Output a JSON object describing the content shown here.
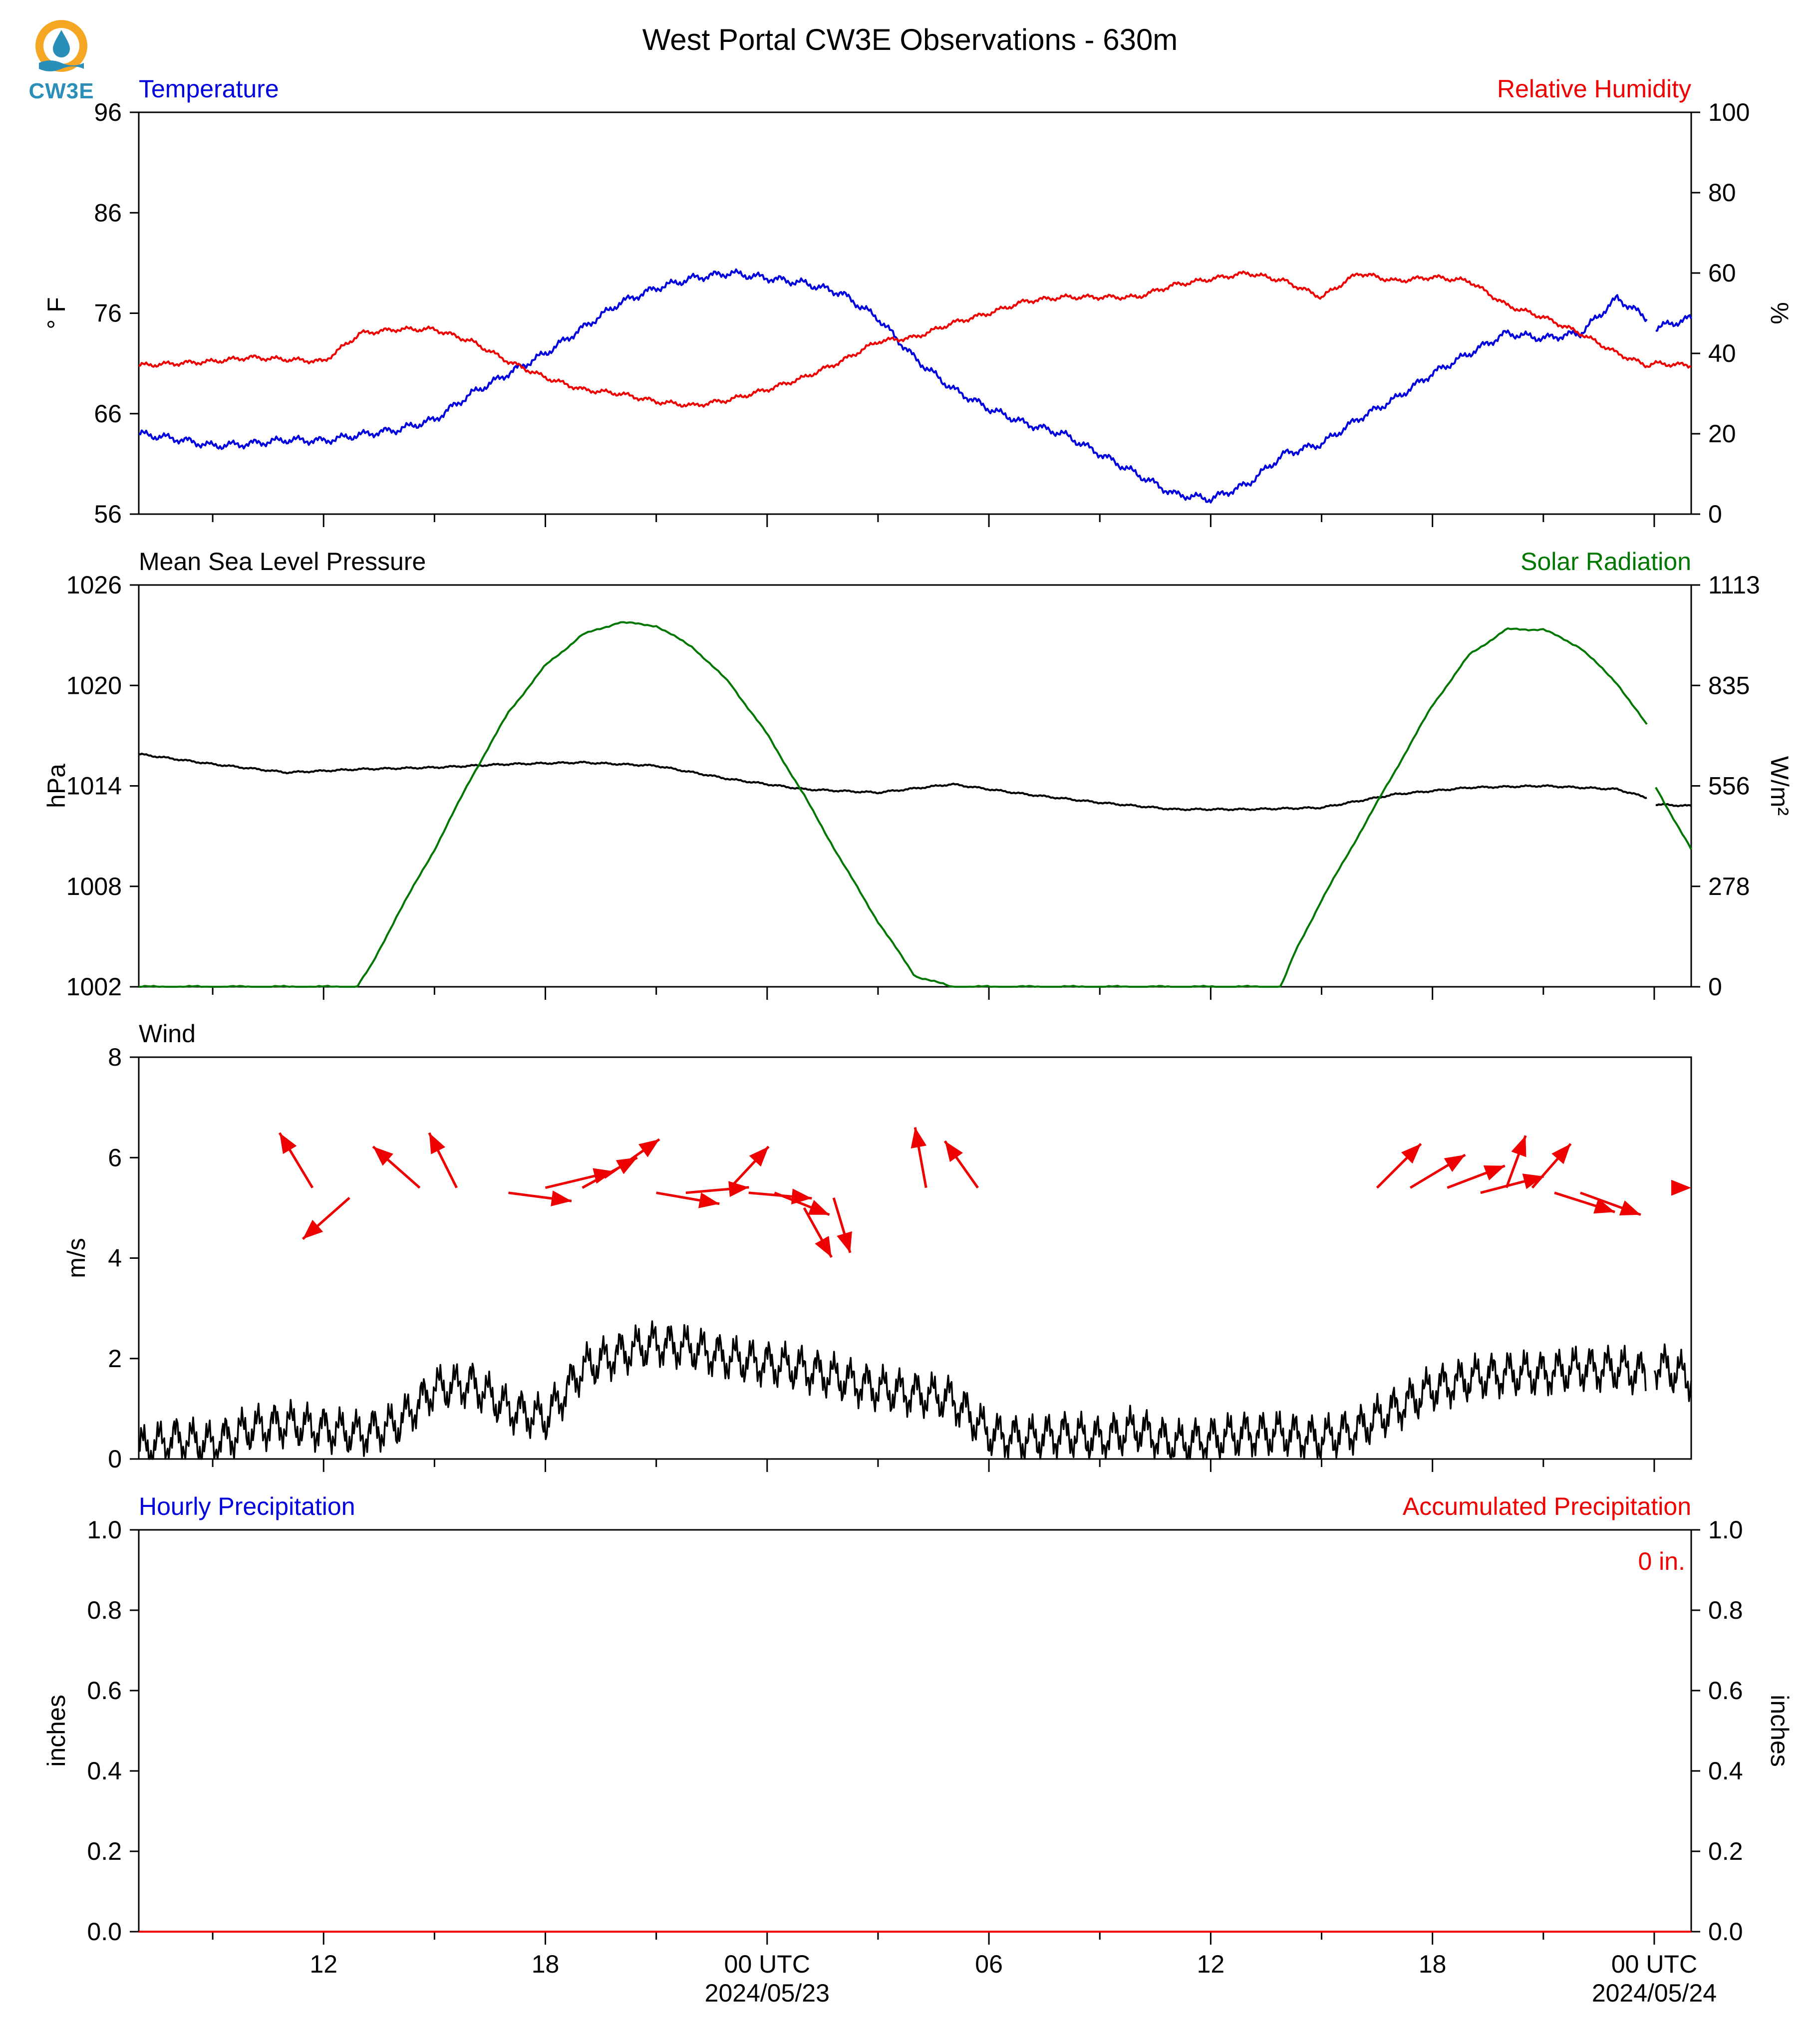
{
  "figure": {
    "title": "West Portal CW3E Observations - 630m",
    "logo_text": "CW3E"
  },
  "colors": {
    "temperature": "#0000dd",
    "humidity": "#ee0000",
    "pressure": "#000000",
    "solar": "#007700",
    "wind_speed": "#000000",
    "wind_arrow": "#ee0000",
    "hourly_precip": "#0000dd",
    "accum_precip": "#ee0000",
    "logo_orange": "#f5a623",
    "logo_teal": "#2a8fb8"
  },
  "icons": {
    "logo": "cw3e-logo-icon"
  },
  "chart_data": [
    {
      "type": "line",
      "panel": "temperature-humidity",
      "title_left": "Temperature",
      "title_right": "Relative Humidity",
      "ylabel": "° F",
      "ylabel_right": "%",
      "ylim": [
        56,
        96
      ],
      "yticks": [
        "56",
        "66",
        "76",
        "86",
        "96"
      ],
      "ylim_right": [
        0,
        100
      ],
      "yticks_right": [
        "0",
        "20",
        "40",
        "60",
        "80",
        "100"
      ],
      "x_unit": "hours from 2024-05-22 07 UTC",
      "xlim": [
        0,
        42
      ],
      "series": [
        {
          "name": "Temperature",
          "axis": "left",
          "x": [
            0,
            1,
            2,
            3,
            4,
            5,
            6,
            7,
            8,
            9,
            10,
            11,
            12,
            13,
            14,
            15,
            16,
            17,
            18,
            19,
            20,
            21,
            22,
            23,
            24,
            25,
            26,
            27,
            28,
            29,
            30,
            31,
            32,
            33,
            34,
            35,
            36,
            37,
            38,
            39,
            40,
            40.8,
            41.0,
            42
          ],
          "y": [
            64,
            63.5,
            62.8,
            63,
            63.4,
            63.3,
            63.9,
            64.4,
            65.4,
            68,
            70,
            72,
            74.5,
            77,
            78.5,
            79.5,
            80,
            79.5,
            79,
            78,
            75.5,
            71.5,
            68.5,
            66.5,
            65,
            64,
            62,
            60,
            58,
            57.5,
            59,
            62,
            63,
            65.5,
            67.5,
            70,
            72,
            74,
            73.5,
            74,
            77.5,
            75.5,
            74.5,
            75.5
          ],
          "gap_after_x": 40.8
        },
        {
          "name": "Relative Humidity",
          "axis": "right",
          "x": [
            0,
            1,
            2,
            3,
            4,
            5,
            6,
            7,
            8,
            9,
            10,
            11,
            12,
            13,
            14,
            15,
            16,
            17,
            18,
            19,
            20,
            21,
            22,
            23,
            24,
            25,
            26,
            27,
            28,
            29,
            30,
            31,
            32,
            33,
            34,
            35,
            36,
            37,
            38,
            39,
            40,
            40.8,
            41.0,
            42
          ],
          "y": [
            37,
            37.5,
            38,
            39,
            38.5,
            38,
            45,
            46,
            46,
            43,
            38,
            34,
            31,
            30,
            28,
            27,
            28.5,
            31,
            34,
            38,
            43,
            44,
            47.5,
            50,
            53,
            54,
            54,
            54,
            57,
            58.5,
            60,
            58,
            54,
            60,
            58,
            59,
            58,
            52,
            49,
            45,
            40,
            37,
            37.5,
            37
          ]
        }
      ]
    },
    {
      "type": "line",
      "panel": "pressure-solar",
      "title_left": "Mean Sea Level Pressure",
      "title_right": "Solar Radiation",
      "ylabel": "hPa",
      "ylabel_right": "W/m²",
      "ylim": [
        1002,
        1026
      ],
      "yticks": [
        "1002",
        "1008",
        "1014",
        "1020",
        "1026"
      ],
      "ylim_right": [
        0,
        1113
      ],
      "yticks_right": [
        "0",
        "278",
        "556",
        "835",
        "1113"
      ],
      "x_unit": "hours from 2024-05-22 07 UTC",
      "xlim": [
        0,
        42
      ],
      "series": [
        {
          "name": "Mean Sea Level Pressure",
          "axis": "left",
          "x": [
            0,
            2,
            4,
            6,
            8,
            10,
            12,
            14,
            16,
            18,
            20,
            22,
            24,
            26,
            28,
            30,
            32,
            34,
            36,
            38,
            40,
            40.8,
            41.0,
            42
          ],
          "y": [
            1015.9,
            1015.3,
            1014.8,
            1015.0,
            1015.1,
            1015.3,
            1015.4,
            1015.2,
            1014.4,
            1013.8,
            1013.6,
            1014.1,
            1013.5,
            1013.0,
            1012.6,
            1012.6,
            1012.7,
            1013.5,
            1013.9,
            1014.0,
            1013.8,
            1013.3,
            1012.9,
            1012.8
          ],
          "gap_after_x": 40.8
        },
        {
          "name": "Solar Radiation",
          "axis": "right",
          "x": [
            0,
            5.9,
            6.3,
            7,
            8,
            9,
            10,
            11,
            12,
            13,
            14,
            15,
            16,
            17,
            18,
            19,
            20,
            21,
            22,
            23,
            24,
            25,
            26,
            27,
            28,
            29,
            30,
            30.9,
            31.3,
            32,
            33,
            34,
            35,
            36,
            37,
            38,
            39,
            40,
            40.8,
            41.0,
            42
          ],
          "y": [
            0,
            0,
            60,
            200,
            380,
            580,
            760,
            890,
            975,
            1010,
            1000,
            940,
            840,
            700,
            530,
            350,
            180,
            30,
            0,
            0,
            0,
            0,
            0,
            0,
            0,
            0,
            0,
            0,
            100,
            240,
            420,
            600,
            780,
            920,
            990,
            990,
            940,
            840,
            725,
            560,
            380
          ],
          "gap_after_x": 40.8
        }
      ]
    },
    {
      "type": "line",
      "panel": "wind",
      "title_left": "Wind",
      "ylabel": "m/s",
      "ylim": [
        0,
        8
      ],
      "yticks": [
        "0",
        "2",
        "4",
        "6",
        "8"
      ],
      "x_unit": "hours from 2024-05-22 07 UTC",
      "xlim": [
        0,
        42
      ],
      "series": [
        {
          "name": "Wind speed",
          "axis": "left",
          "x": [
            0,
            1,
            2,
            3,
            4,
            5,
            6,
            7,
            8,
            9,
            10,
            11,
            12,
            13,
            14,
            15,
            16,
            17,
            18,
            19,
            20,
            21,
            22,
            23,
            24,
            25,
            26,
            27,
            28,
            29,
            30,
            31,
            32,
            33,
            34,
            35,
            36,
            37,
            38,
            39,
            40,
            40.8,
            41.0,
            42
          ],
          "y": [
            0.2,
            0.4,
            0.3,
            0.6,
            0.7,
            0.6,
            0.5,
            0.7,
            1.4,
            1.5,
            1.0,
            0.8,
            1.8,
            2.1,
            2.3,
            2.2,
            2.0,
            1.9,
            1.8,
            1.6,
            1.4,
            1.3,
            1.2,
            0.5,
            0.4,
            0.5,
            0.4,
            0.6,
            0.3,
            0.4,
            0.5,
            0.5,
            0.4,
            0.6,
            1.0,
            1.4,
            1.6,
            1.7,
            1.7,
            1.8,
            1.8,
            1.7,
            1.9,
            1.6
          ],
          "gap_after_x": 40.8
        }
      ],
      "wind_vectors": {
        "note": "arrow x = hour, base y = m/s, (u, v) = m/s components",
        "arrows": [
          {
            "x": 4.7,
            "y": 5.4,
            "u": -1.2,
            "v": 2.0
          },
          {
            "x": 5.7,
            "y": 5.2,
            "u": -1.7,
            "v": -1.5
          },
          {
            "x": 7.6,
            "y": 5.4,
            "u": -1.7,
            "v": 1.5
          },
          {
            "x": 8.6,
            "y": 5.4,
            "u": -1.0,
            "v": 2.0
          },
          {
            "x": 10.0,
            "y": 5.3,
            "u": 2.3,
            "v": -0.3
          },
          {
            "x": 11.0,
            "y": 5.4,
            "u": 2.5,
            "v": 0.6
          },
          {
            "x": 12.0,
            "y": 5.4,
            "u": 2.0,
            "v": 1.1
          },
          {
            "x": 12.6,
            "y": 5.6,
            "u": 2.0,
            "v": 1.4
          },
          {
            "x": 14.0,
            "y": 5.3,
            "u": 2.3,
            "v": -0.4
          },
          {
            "x": 14.8,
            "y": 5.3,
            "u": 2.3,
            "v": 0.2
          },
          {
            "x": 16.0,
            "y": 5.4,
            "u": 1.4,
            "v": 1.5
          },
          {
            "x": 16.5,
            "y": 5.3,
            "u": 2.3,
            "v": -0.2
          },
          {
            "x": 17.2,
            "y": 5.3,
            "u": 2.0,
            "v": -0.8
          },
          {
            "x": 18.0,
            "y": 5.0,
            "u": 1.0,
            "v": -1.8
          },
          {
            "x": 18.8,
            "y": 5.2,
            "u": 0.6,
            "v": -2.0
          },
          {
            "x": 21.3,
            "y": 5.4,
            "u": -0.4,
            "v": 2.2
          },
          {
            "x": 22.7,
            "y": 5.4,
            "u": -1.2,
            "v": 1.7
          },
          {
            "x": 33.5,
            "y": 5.4,
            "u": 1.6,
            "v": 1.6
          },
          {
            "x": 34.4,
            "y": 5.4,
            "u": 2.0,
            "v": 1.2
          },
          {
            "x": 35.4,
            "y": 5.4,
            "u": 2.1,
            "v": 0.8
          },
          {
            "x": 36.3,
            "y": 5.3,
            "u": 2.3,
            "v": 0.6
          },
          {
            "x": 37.0,
            "y": 5.4,
            "u": 0.7,
            "v": 1.9
          },
          {
            "x": 37.7,
            "y": 5.4,
            "u": 1.4,
            "v": 1.6
          },
          {
            "x": 42.0,
            "y": 5.4,
            "u": 0.8,
            "v": 1.0
          },
          {
            "x": 38.3,
            "y": 5.3,
            "u": 2.2,
            "v": -0.7
          },
          {
            "x": 39.0,
            "y": 5.3,
            "u": 2.2,
            "v": -0.8
          }
        ]
      }
    },
    {
      "type": "line",
      "panel": "precipitation",
      "title_left": "Hourly Precipitation",
      "title_right": "Accumulated Precipitation",
      "ylabel": "inches",
      "ylabel_right": "inches",
      "ylim": [
        0,
        1
      ],
      "yticks": [
        "0.0",
        "0.2",
        "0.4",
        "0.6",
        "0.8",
        "1.0"
      ],
      "ylim_right": [
        0,
        1
      ],
      "yticks_right": [
        "0.0",
        "0.2",
        "0.4",
        "0.6",
        "0.8",
        "1.0"
      ],
      "annotation": "0 in.",
      "x_unit": "hours from 2024-05-22 07 UTC",
      "xlim": [
        0,
        42
      ],
      "series": [
        {
          "name": "Accumulated Precipitation",
          "axis": "right",
          "x": [
            0,
            42
          ],
          "y": [
            0,
            0
          ]
        }
      ]
    }
  ],
  "x_axis": {
    "major_ticks": [
      5,
      11,
      17,
      23,
      29,
      35,
      41
    ],
    "tick_labels": [
      "12",
      "18",
      "00 UTC",
      "06",
      "12",
      "18",
      "00 UTC"
    ],
    "date_labels": [
      {
        "at": 17,
        "text": "2024/05/23"
      },
      {
        "at": 41,
        "text": "2024/05/24"
      }
    ]
  }
}
